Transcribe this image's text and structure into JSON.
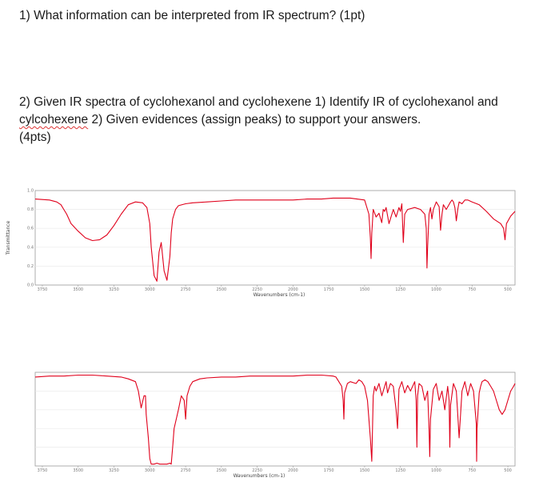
{
  "questions": {
    "q1": "1) What information can be interpreted from IR spectrum? (1pt)",
    "q2_part1": "2) Given IR spectra of cyclohexanol and cyclohexene 1) Identify IR of cyclohexanol and ",
    "q2_misspelled": "cylcohexene",
    "q2_part2": " 2) Given evidences (assign peaks) to support your answers.",
    "q2_part3": "(4pts)"
  },
  "chart_data": [
    {
      "type": "line",
      "xlabel": "Wavenumbers (cm-1)",
      "ylabel": "Transmittance",
      "xlim": [
        3800,
        450
      ],
      "ylim": [
        0,
        1.0
      ],
      "x_ticks": [
        "3750",
        "3500",
        "3250",
        "3000",
        "2750",
        "2500",
        "2250",
        "2000",
        "1750",
        "1500",
        "1250",
        "1000",
        "750",
        "500"
      ],
      "y_ticks": [
        "0.0",
        "0.2",
        "0.4",
        "0.6",
        "0.8",
        "1.0"
      ],
      "grid": true,
      "series": [
        {
          "color": "#e0001b",
          "x": [
            3800,
            3700,
            3650,
            3620,
            3600,
            3580,
            3550,
            3500,
            3450,
            3400,
            3350,
            3300,
            3250,
            3200,
            3150,
            3100,
            3050,
            3020,
            3000,
            2990,
            2970,
            2950,
            2935,
            2920,
            2900,
            2880,
            2860,
            2850,
            2840,
            2820,
            2800,
            2750,
            2700,
            2600,
            2500,
            2400,
            2300,
            2200,
            2100,
            2000,
            1900,
            1800,
            1720,
            1700,
            1600,
            1500,
            1470,
            1460,
            1455,
            1450,
            1440,
            1420,
            1400,
            1380,
            1370,
            1360,
            1350,
            1330,
            1300,
            1280,
            1260,
            1250,
            1240,
            1230,
            1220,
            1200,
            1150,
            1110,
            1080,
            1070,
            1065,
            1060,
            1050,
            1040,
            1030,
            1020,
            1000,
            980,
            970,
            960,
            950,
            930,
            900,
            890,
            880,
            870,
            860,
            850,
            840,
            820,
            800,
            780,
            750,
            700,
            650,
            600,
            550,
            530,
            520,
            510,
            480,
            450
          ],
          "y": [
            0.91,
            0.9,
            0.88,
            0.85,
            0.8,
            0.75,
            0.65,
            0.57,
            0.5,
            0.47,
            0.48,
            0.53,
            0.63,
            0.75,
            0.85,
            0.88,
            0.87,
            0.82,
            0.65,
            0.4,
            0.1,
            0.04,
            0.35,
            0.45,
            0.15,
            0.05,
            0.3,
            0.55,
            0.7,
            0.8,
            0.84,
            0.86,
            0.87,
            0.88,
            0.89,
            0.9,
            0.9,
            0.9,
            0.9,
            0.9,
            0.91,
            0.91,
            0.92,
            0.92,
            0.92,
            0.9,
            0.75,
            0.5,
            0.28,
            0.55,
            0.8,
            0.72,
            0.76,
            0.66,
            0.8,
            0.78,
            0.82,
            0.65,
            0.8,
            0.72,
            0.82,
            0.78,
            0.86,
            0.45,
            0.75,
            0.8,
            0.82,
            0.8,
            0.75,
            0.6,
            0.18,
            0.4,
            0.75,
            0.82,
            0.7,
            0.8,
            0.88,
            0.83,
            0.58,
            0.75,
            0.85,
            0.8,
            0.88,
            0.9,
            0.88,
            0.82,
            0.68,
            0.8,
            0.88,
            0.86,
            0.9,
            0.9,
            0.88,
            0.85,
            0.78,
            0.7,
            0.65,
            0.6,
            0.48,
            0.65,
            0.73,
            0.78
          ]
        }
      ]
    },
    {
      "type": "line",
      "xlabel": "Wavenumbers (cm-1)",
      "ylabel": "",
      "xlim": [
        3800,
        450
      ],
      "ylim": [
        0,
        1.0
      ],
      "x_ticks": [
        "3750",
        "3500",
        "3250",
        "3000",
        "2750",
        "2500",
        "2250",
        "2000",
        "1750",
        "1500",
        "1250",
        "1000",
        "750",
        "500"
      ],
      "y_ticks": [],
      "grid": true,
      "series": [
        {
          "color": "#e0001b",
          "x": [
            3800,
            3700,
            3600,
            3500,
            3400,
            3300,
            3200,
            3150,
            3100,
            3080,
            3060,
            3040,
            3030,
            3025,
            3010,
            3000,
            2990,
            2970,
            2950,
            2930,
            2900,
            2880,
            2860,
            2850,
            2840,
            2830,
            2800,
            2780,
            2760,
            2750,
            2740,
            2720,
            2700,
            2650,
            2600,
            2500,
            2400,
            2300,
            2200,
            2100,
            2000,
            1900,
            1800,
            1720,
            1700,
            1680,
            1660,
            1650,
            1645,
            1640,
            1620,
            1600,
            1560,
            1540,
            1520,
            1500,
            1480,
            1460,
            1450,
            1445,
            1440,
            1430,
            1420,
            1400,
            1380,
            1360,
            1350,
            1340,
            1320,
            1300,
            1280,
            1270,
            1260,
            1240,
            1220,
            1200,
            1180,
            1150,
            1140,
            1135,
            1130,
            1120,
            1100,
            1080,
            1060,
            1050,
            1045,
            1040,
            1020,
            1000,
            980,
            960,
            940,
            920,
            910,
            905,
            900,
            880,
            860,
            850,
            840,
            820,
            800,
            780,
            760,
            740,
            720,
            718,
            715,
            700,
            690,
            680,
            660,
            640,
            620,
            600,
            580,
            560,
            540,
            520,
            500,
            480,
            460,
            450
          ],
          "y": [
            0.95,
            0.96,
            0.96,
            0.97,
            0.97,
            0.96,
            0.95,
            0.93,
            0.9,
            0.8,
            0.62,
            0.75,
            0.75,
            0.55,
            0.3,
            0.08,
            0.02,
            0.02,
            0.03,
            0.02,
            0.02,
            0.02,
            0.03,
            0.02,
            0.2,
            0.4,
            0.6,
            0.75,
            0.7,
            0.5,
            0.75,
            0.85,
            0.9,
            0.93,
            0.94,
            0.95,
            0.95,
            0.96,
            0.96,
            0.96,
            0.96,
            0.97,
            0.97,
            0.96,
            0.95,
            0.9,
            0.85,
            0.7,
            0.5,
            0.78,
            0.88,
            0.9,
            0.88,
            0.92,
            0.9,
            0.85,
            0.7,
            0.3,
            0.05,
            0.4,
            0.75,
            0.85,
            0.8,
            0.88,
            0.75,
            0.85,
            0.9,
            0.78,
            0.88,
            0.85,
            0.6,
            0.4,
            0.82,
            0.9,
            0.78,
            0.86,
            0.8,
            0.9,
            0.7,
            0.2,
            0.75,
            0.88,
            0.85,
            0.7,
            0.8,
            0.4,
            0.1,
            0.5,
            0.82,
            0.88,
            0.7,
            0.8,
            0.6,
            0.85,
            0.7,
            0.2,
            0.65,
            0.88,
            0.8,
            0.55,
            0.3,
            0.8,
            0.9,
            0.75,
            0.88,
            0.8,
            0.45,
            0.05,
            0.4,
            0.78,
            0.85,
            0.9,
            0.92,
            0.9,
            0.85,
            0.8,
            0.7,
            0.6,
            0.55,
            0.6,
            0.7,
            0.8,
            0.85,
            0.88
          ]
        }
      ]
    }
  ]
}
